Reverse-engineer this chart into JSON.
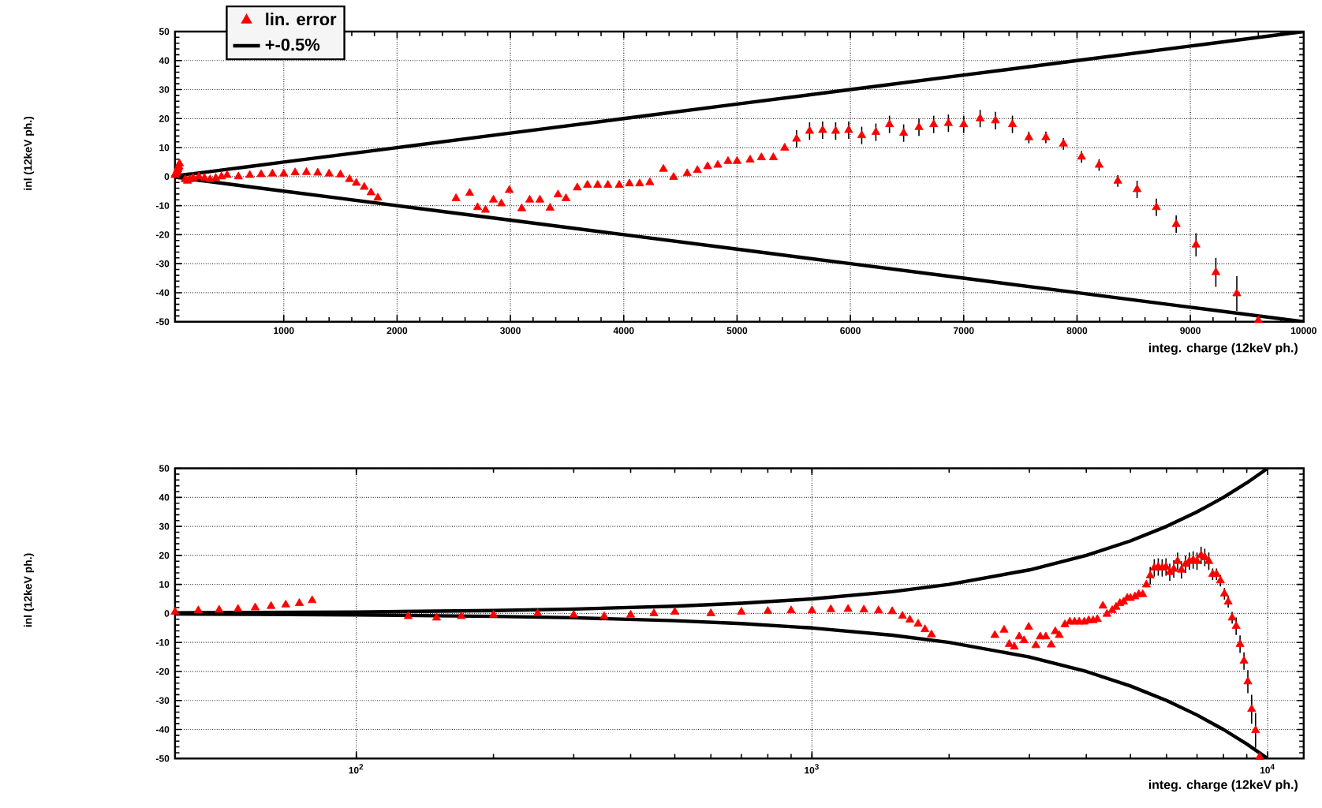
{
  "chart_data": [
    {
      "type": "scatter",
      "xlabel": "integ. charge (12keV ph.)",
      "ylabel": "inl (12keV ph.)",
      "xlim": [
        40,
        10000
      ],
      "xticks": [
        1000,
        2000,
        3000,
        4000,
        5000,
        6000,
        7000,
        8000,
        9000,
        10000
      ],
      "ylim": [
        -50,
        50
      ],
      "yticks": [
        -50,
        -40,
        -30,
        -20,
        -10,
        0,
        10,
        20,
        30,
        40,
        50
      ],
      "grid": true,
      "legend": "top left",
      "marker": "triangle",
      "series": [
        {
          "name": "lin. error",
          "color": "#ff0000",
          "x": [
            40,
            45,
            50,
            55,
            60,
            65,
            70,
            75,
            80,
            130,
            150,
            170,
            200,
            250,
            300,
            350,
            400,
            450,
            500,
            600,
            700,
            800,
            900,
            1000,
            1100,
            1200,
            1300,
            1400,
            1500,
            1580,
            1640,
            1710,
            1770,
            1830,
            2520,
            2640,
            2710,
            2780,
            2850,
            2920,
            2990,
            3100,
            3170,
            3260,
            3350,
            3420,
            3490,
            3590,
            3680,
            3770,
            3860,
            3960,
            4050,
            4140,
            4230,
            4350,
            4440,
            4560,
            4650,
            4740,
            4830,
            4920,
            5000,
            5115,
            5215,
            5320,
            5420,
            5525,
            5640,
            5755,
            5870,
            5985,
            6100,
            6225,
            6345,
            6470,
            6605,
            6735,
            6865,
            7000,
            7145,
            7280,
            7430,
            7575,
            7725,
            7880,
            8040,
            8195,
            8360,
            8530,
            8700,
            8875,
            9050,
            9225,
            9410,
            9600
          ],
          "values": [
            0.5,
            1,
            1.2,
            1.5,
            2,
            2.5,
            3,
            3.5,
            4.5,
            -1,
            -1.5,
            -1,
            -0.5,
            0,
            -0.5,
            -1,
            -0.5,
            0,
            0.5,
            0,
            0.5,
            0.8,
            1,
            1,
            1.4,
            1.5,
            1.3,
            1,
            0.7,
            -0.9,
            -2.2,
            -3.6,
            -5.5,
            -7.3,
            -7.5,
            -5.7,
            -10.6,
            -11.5,
            -8,
            -9.3,
            -4.7,
            -11,
            -8,
            -8,
            -10.8,
            -6.2,
            -7.5,
            -3.8,
            -2.9,
            -2.9,
            -2.9,
            -2.9,
            -2.4,
            -2.4,
            -2,
            2.6,
            -0.2,
            1.1,
            2.2,
            3.5,
            4,
            5.3,
            5.3,
            5.8,
            6.6,
            6.6,
            9.9,
            13,
            15.7,
            16,
            15.7,
            16,
            14.2,
            15.3,
            18,
            15,
            17,
            18,
            18.4,
            18,
            20,
            19.3,
            18,
            13.5,
            13.5,
            11.3,
            6.8,
            4,
            -1.5,
            -4.4,
            -10.6,
            -16.4,
            -23.5,
            -33,
            -40.3,
            -49.5
          ],
          "errors": [
            null,
            null,
            null,
            null,
            null,
            null,
            null,
            null,
            null,
            null,
            null,
            null,
            null,
            null,
            null,
            null,
            null,
            null,
            null,
            null,
            null,
            null,
            null,
            null,
            null,
            null,
            null,
            null,
            null,
            null,
            null,
            null,
            null,
            null,
            null,
            null,
            null,
            null,
            null,
            null,
            null,
            null,
            null,
            null,
            null,
            null,
            null,
            null,
            null,
            null,
            null,
            null,
            null,
            null,
            null,
            null,
            null,
            null,
            null,
            null,
            null,
            null,
            null,
            null,
            null,
            null,
            null,
            3,
            3,
            3,
            3,
            3,
            3,
            3,
            3,
            3,
            3,
            3,
            3,
            3,
            3,
            3,
            3,
            2,
            2,
            2,
            2,
            2,
            2,
            3,
            3,
            3,
            4,
            5,
            6,
            null
          ]
        },
        {
          "name": "+-0.5%",
          "type": "line",
          "marker": "none",
          "color": "#000000",
          "x": [
            40,
            60,
            100,
            150,
            200,
            300,
            500,
            700,
            1000,
            1500,
            2000,
            3000,
            4000,
            5000,
            6000,
            7000,
            8000,
            9000,
            10000
          ],
          "values": [
            0.2,
            0.3,
            0.5,
            0.8,
            1,
            1.5,
            2.5,
            3.5,
            5,
            7.5,
            10,
            15,
            20,
            25,
            30,
            35,
            40,
            45,
            50
          ]
        },
        {
          "type": "line",
          "marker": "none",
          "color": "#000000",
          "x": [
            40,
            60,
            100,
            150,
            200,
            300,
            500,
            700,
            1000,
            1500,
            2000,
            3000,
            4000,
            5000,
            6000,
            7000,
            8000,
            9000,
            10000
          ],
          "values": [
            -0.2,
            -0.3,
            -0.5,
            -0.8,
            -1,
            -1.5,
            -2.5,
            -3.5,
            -5,
            -7.5,
            -10,
            -15,
            -20,
            -25,
            -30,
            -35,
            -40,
            -45,
            -50
          ]
        }
      ]
    },
    {
      "type": "scatter",
      "xlabel": "integ. charge (12keV ph.)",
      "ylabel": "inl (12keV ph.)",
      "log": "x",
      "xlim": [
        40,
        12000
      ],
      "xticks": [
        {
          "value": 100,
          "label": "10$^{2}$"
        },
        {
          "value": 1000,
          "label": "10$^{3}$"
        },
        {
          "value": 10000,
          "label": "10$^{4}$"
        }
      ],
      "ylim": [
        -50,
        50
      ],
      "yticks": [
        -50,
        -40,
        -30,
        -20,
        -10,
        0,
        10,
        20,
        30,
        40,
        50
      ],
      "grid": true,
      "marker": "triangle",
      "series": [
        {
          "color": "#ff0000",
          "x": [
            40,
            45,
            50,
            55,
            60,
            65,
            70,
            75,
            80,
            130,
            150,
            170,
            200,
            250,
            300,
            350,
            400,
            450,
            500,
            600,
            700,
            800,
            900,
            1000,
            1100,
            1200,
            1300,
            1400,
            1500,
            1580,
            1640,
            1710,
            1770,
            1830,
            2520,
            2640,
            2710,
            2780,
            2850,
            2920,
            2990,
            3100,
            3170,
            3260,
            3350,
            3420,
            3490,
            3590,
            3680,
            3770,
            3860,
            3960,
            4050,
            4140,
            4230,
            4350,
            4440,
            4560,
            4650,
            4740,
            4830,
            4920,
            5000,
            5115,
            5215,
            5320,
            5420,
            5525,
            5640,
            5755,
            5870,
            5985,
            6100,
            6225,
            6345,
            6470,
            6605,
            6735,
            6865,
            7000,
            7145,
            7280,
            7430,
            7575,
            7725,
            7880,
            8040,
            8195,
            8360,
            8530,
            8700,
            8875,
            9050,
            9225,
            9410,
            9600
          ],
          "values": [
            0.5,
            1,
            1.2,
            1.5,
            2,
            2.5,
            3,
            3.5,
            4.5,
            -1,
            -1.5,
            -1,
            -0.5,
            0,
            -0.5,
            -1,
            -0.5,
            0,
            0.5,
            0,
            0.5,
            0.8,
            1,
            1,
            1.4,
            1.5,
            1.3,
            1,
            0.7,
            -0.9,
            -2.2,
            -3.6,
            -5.5,
            -7.3,
            -7.5,
            -5.7,
            -10.6,
            -11.5,
            -8,
            -9.3,
            -4.7,
            -11,
            -8,
            -8,
            -10.8,
            -6.2,
            -7.5,
            -3.8,
            -2.9,
            -2.9,
            -2.9,
            -2.9,
            -2.4,
            -2.4,
            -2,
            2.6,
            -0.2,
            1.1,
            2.2,
            3.5,
            4,
            5.3,
            5.3,
            5.8,
            6.6,
            6.6,
            9.9,
            13,
            15.7,
            16,
            15.7,
            16,
            14.2,
            15.3,
            18,
            15,
            17,
            18,
            18.4,
            18,
            20,
            19.3,
            18,
            13.5,
            13.5,
            11.3,
            6.8,
            4,
            -1.5,
            -4.4,
            -10.6,
            -16.4,
            -23.5,
            -33,
            -40.3,
            -49.5
          ],
          "errors": [
            null,
            null,
            null,
            null,
            null,
            null,
            null,
            null,
            null,
            null,
            null,
            null,
            null,
            null,
            null,
            null,
            null,
            null,
            null,
            null,
            null,
            null,
            null,
            null,
            null,
            null,
            null,
            null,
            null,
            null,
            null,
            null,
            null,
            null,
            null,
            null,
            null,
            null,
            null,
            null,
            null,
            null,
            null,
            null,
            null,
            null,
            null,
            null,
            null,
            null,
            null,
            null,
            null,
            null,
            null,
            null,
            null,
            null,
            null,
            null,
            null,
            null,
            null,
            null,
            null,
            null,
            null,
            3,
            3,
            3,
            3,
            3,
            3,
            3,
            3,
            3,
            3,
            3,
            3,
            3,
            3,
            3,
            3,
            2,
            2,
            2,
            2,
            2,
            2,
            3,
            3,
            3,
            4,
            5,
            6,
            null
          ]
        },
        {
          "type": "line",
          "marker": "none",
          "color": "#000000",
          "x": [
            40,
            60,
            100,
            150,
            200,
            300,
            500,
            700,
            1000,
            1500,
            2000,
            3000,
            4000,
            5000,
            6000,
            7000,
            8000,
            9000,
            10000
          ],
          "values": [
            0.2,
            0.3,
            0.5,
            0.8,
            1,
            1.5,
            2.5,
            3.5,
            5,
            7.5,
            10,
            15,
            20,
            25,
            30,
            35,
            40,
            45,
            50
          ]
        },
        {
          "type": "line",
          "marker": "none",
          "color": "#000000",
          "x": [
            40,
            60,
            100,
            150,
            200,
            300,
            500,
            700,
            1000,
            1500,
            2000,
            3000,
            4000,
            5000,
            6000,
            7000,
            8000,
            9000,
            10000
          ],
          "values": [
            -0.2,
            -0.3,
            -0.5,
            -0.8,
            -1,
            -1.5,
            -2.5,
            -3.5,
            -5,
            -7.5,
            -10,
            -15,
            -20,
            -25,
            -30,
            -35,
            -40,
            -45,
            -50
          ]
        }
      ]
    }
  ]
}
